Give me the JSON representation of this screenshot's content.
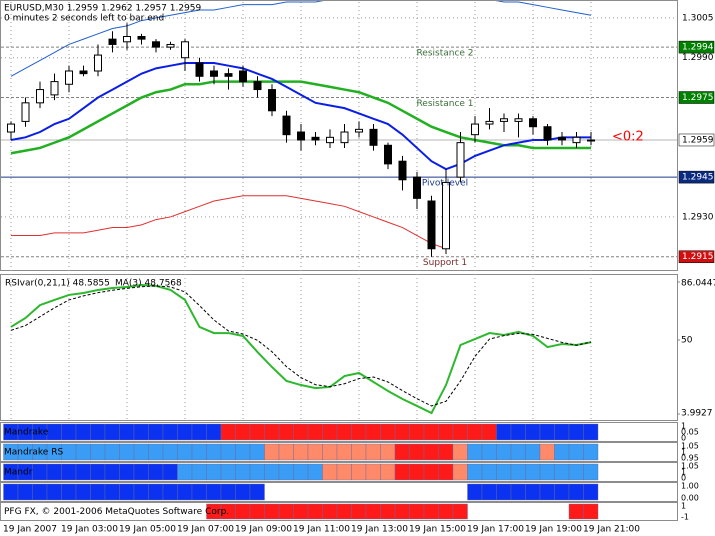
{
  "chart_data": [
    {
      "type": "candlestick",
      "title": "EURUSD,M30  1.2959 1.2962 1.2957 1.2959",
      "subtitle": "0 minutes 2 seconds left to bar end",
      "timer": "<0:2",
      "timer_color": "#ff0000",
      "categories": [
        "19 Jan 2007",
        null,
        null,
        null,
        "19 Jan 03:00",
        null,
        null,
        null,
        "19 Jan 05:00",
        null,
        null,
        null,
        "19 Jan 07:00",
        null,
        null,
        null,
        "19 Jan 09:00",
        null,
        null,
        null,
        "19 Jan 11:00",
        null,
        null,
        null,
        "19 Jan 13:00",
        null,
        null,
        null,
        "19 Jan 15:00",
        null,
        null,
        null,
        "19 Jan 17:00",
        null,
        null,
        null,
        "19 Jan 19:00",
        null,
        null,
        null,
        "19 Jan 21:00"
      ],
      "open": [
        1.2962,
        1.2966,
        1.2973,
        1.2976,
        1.298,
        1.2985,
        1.2985,
        1.2997,
        1.2996,
        1.2998,
        1.2996,
        1.2994,
        1.299,
        1.2988,
        1.2985,
        1.2984,
        1.2985,
        1.2981,
        1.2978,
        1.2968,
        1.2962,
        1.296,
        1.2958,
        1.2958,
        1.2962,
        1.2963,
        1.2957,
        1.2951,
        1.2945,
        1.2936,
        1.2918,
        1.2945,
        1.2961,
        1.2965,
        1.2966,
        1.2966,
        1.2967,
        1.2964,
        1.296,
        1.2958,
        1.2959
      ],
      "high": [
        1.2966,
        1.2975,
        1.2981,
        1.2984,
        1.2987,
        1.2987,
        1.2995,
        1.3,
        1.3003,
        1.2999,
        1.2997,
        1.2996,
        1.2997,
        1.299,
        1.2987,
        1.2986,
        1.2987,
        1.2983,
        1.298,
        1.297,
        1.2965,
        1.2962,
        1.2963,
        1.2965,
        1.2966,
        1.2965,
        1.2958,
        1.2953,
        1.2947,
        1.2938,
        1.2948,
        1.2962,
        1.2968,
        1.2971,
        1.2969,
        1.2969,
        1.2968,
        1.2965,
        1.2962,
        1.2962,
        1.2962
      ],
      "low": [
        1.2959,
        1.2964,
        1.2971,
        1.2974,
        1.2977,
        1.2983,
        1.2983,
        1.2992,
        1.2993,
        1.2995,
        1.2992,
        1.2993,
        1.2985,
        1.2981,
        1.298,
        1.2978,
        1.2979,
        1.2975,
        1.2968,
        1.2958,
        1.2955,
        1.2957,
        1.2956,
        1.2956,
        1.296,
        1.2955,
        1.2948,
        1.294,
        1.2933,
        1.2915,
        1.2916,
        1.2943,
        1.2958,
        1.2963,
        1.2962,
        1.296,
        1.2961,
        1.2957,
        1.2957,
        1.2956,
        1.2957
      ],
      "close": [
        1.2965,
        1.2973,
        1.2978,
        1.2981,
        1.2985,
        1.2984,
        1.2991,
        1.2995,
        1.2998,
        1.2997,
        1.2994,
        1.2995,
        1.2996,
        1.2983,
        1.2983,
        1.2983,
        1.2981,
        1.2978,
        1.297,
        1.2961,
        1.2959,
        1.2959,
        1.296,
        1.2962,
        1.2963,
        1.2957,
        1.295,
        1.2944,
        1.2937,
        1.2918,
        1.2943,
        1.2958,
        1.2965,
        1.2966,
        1.2967,
        1.2967,
        1.2964,
        1.2959,
        1.2959,
        1.296,
        1.2959
      ],
      "up_color": "#ffffff",
      "down_color": "#000000",
      "lines": [
        {
          "color": "#1f5fd0",
          "width": 1,
          "values": [
            1.2983,
            1.2986,
            1.2989,
            1.2992,
            1.2995,
            1.2997,
            1.2999,
            1.3001,
            1.3002,
            1.3004,
            1.3005,
            1.3006,
            1.3007,
            1.3008,
            1.3008,
            1.3009,
            1.301,
            1.301,
            1.301,
            1.3011,
            1.3011,
            1.3011,
            1.3012,
            1.3012,
            1.3012,
            1.3012,
            1.3012,
            1.3012,
            1.3012,
            1.3012,
            1.3012,
            1.3012,
            1.3012,
            1.3012,
            1.3011,
            1.3011,
            1.301,
            1.3009,
            1.3008,
            1.3007,
            1.3006
          ]
        },
        {
          "color": "#e03030",
          "width": 1,
          "values": [
            1.2923,
            1.2923,
            1.2923,
            1.2924,
            1.2924,
            1.2924,
            1.2925,
            1.2926,
            1.2926,
            1.2927,
            1.2929,
            1.293,
            1.2932,
            1.2934,
            1.2936,
            1.2937,
            1.2938,
            1.2938,
            1.2938,
            1.2938,
            1.2937,
            1.2936,
            1.2935,
            1.2934,
            1.2932,
            1.293,
            1.2928,
            1.2926,
            1.2923,
            1.292,
            1.2918,
            null,
            null,
            null,
            null,
            null,
            null,
            null,
            null,
            null,
            null
          ]
        },
        {
          "color": "#22b022",
          "width": 2.5,
          "values": [
            1.2954,
            1.2955,
            1.2956,
            1.2958,
            1.296,
            1.2963,
            1.2966,
            1.2969,
            1.2972,
            1.2975,
            1.2977,
            1.2978,
            1.298,
            1.298,
            1.2981,
            1.2981,
            1.2981,
            1.2981,
            1.2981,
            1.2981,
            1.2981,
            1.298,
            1.2979,
            1.2978,
            1.2977,
            1.2975,
            1.2973,
            1.297,
            1.2967,
            1.2964,
            1.2962,
            1.296,
            1.2959,
            1.2958,
            1.2957,
            1.2957,
            1.2956,
            1.2956,
            1.2956,
            1.2956,
            1.2956
          ]
        },
        {
          "color": "#0a1ee6",
          "width": 2,
          "values": [
            1.2959,
            1.296,
            1.2962,
            1.2965,
            1.2967,
            1.2971,
            1.2975,
            1.2978,
            1.2981,
            1.2984,
            1.2986,
            1.2987,
            1.2988,
            1.2988,
            1.2988,
            1.2987,
            1.2986,
            1.2984,
            1.2982,
            1.2979,
            1.2976,
            1.2973,
            1.2972,
            1.2971,
            1.2969,
            1.2967,
            1.2965,
            1.2961,
            1.2956,
            1.2951,
            1.2948,
            1.295,
            1.2953,
            1.2955,
            1.2957,
            1.2958,
            1.2959,
            1.2959,
            1.296,
            1.296,
            1.296
          ]
        }
      ],
      "levels": [
        {
          "name": "Resistance 2",
          "value": 1.2994,
          "color": "#808080",
          "style": "dashed",
          "text_color": "#3c6e3c",
          "box_color": "#008000",
          "box_text": "#ffffff"
        },
        {
          "name": "Resistance 1",
          "value": 1.2975,
          "color": "#808080",
          "style": "dashed",
          "text_color": "#3c6e3c",
          "box_color": "#008000",
          "box_text": "#ffffff"
        },
        {
          "value": 1.2959,
          "color": "#b4b4b4",
          "style": "solid",
          "box_color": "#ffffff",
          "box_text": "#000000"
        },
        {
          "name": "Pivot level",
          "value": 1.2945,
          "color": "#1a3a8a",
          "style": "solid",
          "text_color": "#1a3a8a",
          "box_color": "#0a2a80",
          "box_text": "#ffffff"
        },
        {
          "name": "Support 1",
          "value": 1.2915,
          "color": "#808080",
          "style": "dashed",
          "text_color": "#7a2a2a",
          "box_color": "#d01010",
          "box_text": "#ffffff"
        }
      ],
      "ylim": [
        1.291,
        1.3011
      ],
      "yticks": [
        1.3005,
        {
          "value": 1.299,
          "label": "1.2990"
        },
        {
          "value": 1.293,
          "label": "1.2930"
        }
      ],
      "grid": true
    },
    {
      "type": "line",
      "series": [
        {
          "name": "RSIvar(0,21,1) 48.5855",
          "color": "#2db82d",
          "width": 2,
          "style": "solid",
          "values": [
            58.1,
            63.7,
            71.7,
            74.9,
            78.0,
            79.2,
            81.1,
            82.3,
            82.9,
            84.2,
            83.6,
            81.1,
            74.9,
            58.1,
            54.3,
            54.3,
            52.5,
            42.5,
            33.2,
            24.5,
            22.0,
            20.1,
            20.8,
            27.6,
            29.5,
            23.9,
            18.3,
            13.3,
            9.0,
            4.6,
            22.0,
            46.9,
            50.6,
            54.3,
            53.1,
            55.0,
            52.5,
            45.6,
            47.5,
            46.9,
            48.5855
          ]
        },
        {
          "name": "MA(3) 48.7568",
          "color": "#000000",
          "width": 1,
          "style": "dashed",
          "values": [
            56,
            59,
            64.5,
            70,
            74.9,
            77.4,
            79.4,
            80.9,
            82.1,
            83.1,
            83.6,
            83.0,
            79.9,
            71.4,
            62.4,
            55.6,
            53.7,
            49.8,
            42.7,
            33.4,
            26.6,
            22.2,
            21.0,
            22.8,
            26.0,
            27.0,
            23.9,
            18.5,
            13.5,
            9.0,
            11.9,
            24.5,
            39.8,
            50.6,
            52.7,
            54.1,
            53.5,
            51.0,
            48.5,
            46.7,
            48.7568
          ]
        }
      ],
      "ylim": [
        3.9927,
        86.0447
      ],
      "yticks": [
        86.0447,
        50,
        3.9927
      ]
    },
    {
      "type": "state_rows",
      "palette": {
        "B": "#0a32f0",
        "L": "#3a9cf5",
        "R": "#ff1a1a",
        "S": "#ff8a6a"
      },
      "rows": [
        {
          "label": "Mandrake",
          "scale_labels": [
            "1",
            "0.05",
            "0"
          ],
          "states": [
            "B",
            "B",
            "B",
            "B",
            "B",
            "B",
            "B",
            "B",
            "B",
            "B",
            "B",
            "B",
            "B",
            "B",
            "B",
            "R",
            "R",
            "R",
            "R",
            "R",
            "R",
            "R",
            "R",
            "R",
            "R",
            "R",
            "R",
            "R",
            "R",
            "R",
            "R",
            "R",
            "R",
            "R",
            "B",
            "B",
            "B",
            "B",
            "B",
            "B",
            "B"
          ]
        },
        {
          "label": "Mandrake RS",
          "scale_labels": [
            "1.05",
            "1",
            "0.95"
          ],
          "states": [
            "L",
            "L",
            "L",
            "L",
            "L",
            "L",
            "L",
            "L",
            "L",
            "L",
            "L",
            "L",
            "L",
            "L",
            "L",
            "L",
            "L",
            "L",
            "S",
            "S",
            "S",
            "S",
            "S",
            "S",
            "S",
            "S",
            "S",
            "R",
            "R",
            "R",
            "R",
            "S",
            "L",
            "L",
            "L",
            "L",
            "L",
            "S",
            "L",
            "L",
            "L"
          ]
        },
        {
          "label": "Mandr",
          "scale_labels": [
            "1.05",
            "1",
            "0"
          ],
          "states": [
            "B",
            "B",
            "B",
            "B",
            "B",
            "B",
            "B",
            "B",
            "B",
            "B",
            "B",
            "B",
            "L",
            "L",
            "L",
            "L",
            "L",
            "L",
            "L",
            "L",
            "L",
            "L",
            "S",
            "S",
            "S",
            "S",
            "S",
            "R",
            "R",
            "R",
            "R",
            "S",
            "L",
            "L",
            "L",
            "L",
            "L",
            "L",
            "L",
            "L",
            "L"
          ]
        },
        {
          "scale_labels": [
            "1.00",
            "0.00"
          ],
          "states": [
            "B",
            "B",
            "B",
            "B",
            "B",
            "B",
            "B",
            "B",
            "B",
            "B",
            "B",
            "B",
            "B",
            "B",
            "B",
            "B",
            "B",
            "B",
            "W",
            "W",
            "W",
            "W",
            "W",
            "W",
            "W",
            "W",
            "W",
            "W",
            "W",
            "W",
            "W",
            "W",
            "B",
            "B",
            "B",
            "B",
            "B",
            "B",
            "B",
            "B",
            "B"
          ]
        },
        {
          "label": "PFG FX, © 2001-2006 MetaQuotes Software Corp.",
          "scale_labels": [
            "1",
            "-1"
          ],
          "states": [
            "W",
            "W",
            "W",
            "W",
            "W",
            "W",
            "W",
            "W",
            "W",
            "W",
            "W",
            "W",
            "W",
            "W",
            "R",
            "R",
            "R",
            "R",
            "R",
            "R",
            "R",
            "R",
            "R",
            "R",
            "R",
            "R",
            "R",
            "R",
            "R",
            "R",
            "R",
            "R",
            "W",
            "W",
            "W",
            "W",
            "W",
            "W",
            "W",
            "R",
            "R"
          ]
        }
      ]
    }
  ]
}
